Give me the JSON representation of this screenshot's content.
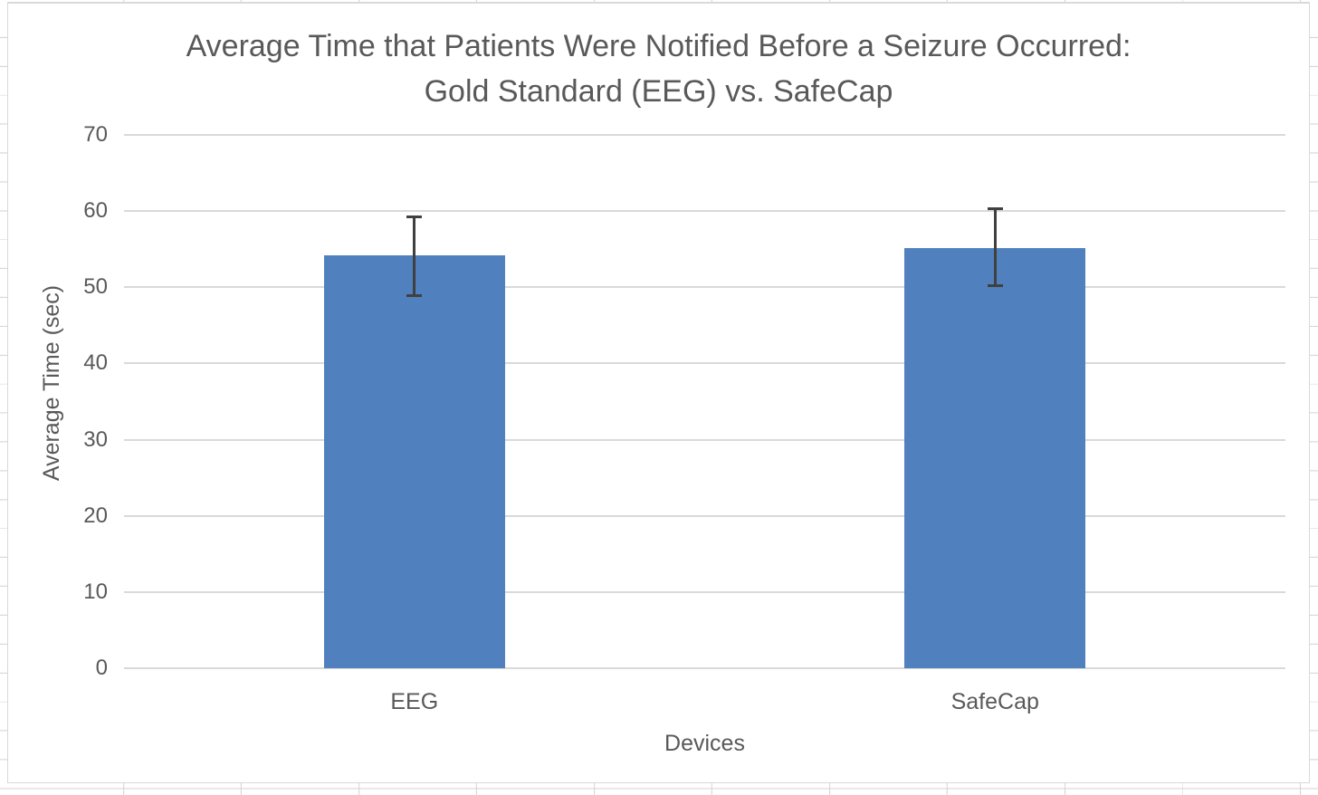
{
  "chart_data": {
    "type": "bar",
    "title": "Average Time that Patients Were Notified Before a Seizure Occurred: Gold Standard (EEG) vs. SafeCap",
    "title_line1": "Average Time that Patients Were Notified Before a Seizure Occurred:",
    "title_line2": "Gold Standard (EEG) vs. SafeCap",
    "categories": [
      "EEG",
      "SafeCap"
    ],
    "values": [
      54.2,
      55.2
    ],
    "error_bars": {
      "low": [
        48.9,
        50.1
      ],
      "high": [
        59.3,
        60.4
      ]
    },
    "xlabel": "Devices",
    "ylabel": "Average Time (sec)",
    "ylim": [
      0,
      70
    ],
    "yticks": [
      0,
      10,
      20,
      30,
      40,
      50,
      60,
      70
    ],
    "grid": true,
    "legend_position": "none",
    "colors": {
      "bar": "#5080be",
      "gridline": "#d9d9d9",
      "error_bar": "#404040",
      "text": "#595959",
      "chart_border": "#d9d9d9",
      "sheet_gridline": "#d6d6d6"
    }
  }
}
